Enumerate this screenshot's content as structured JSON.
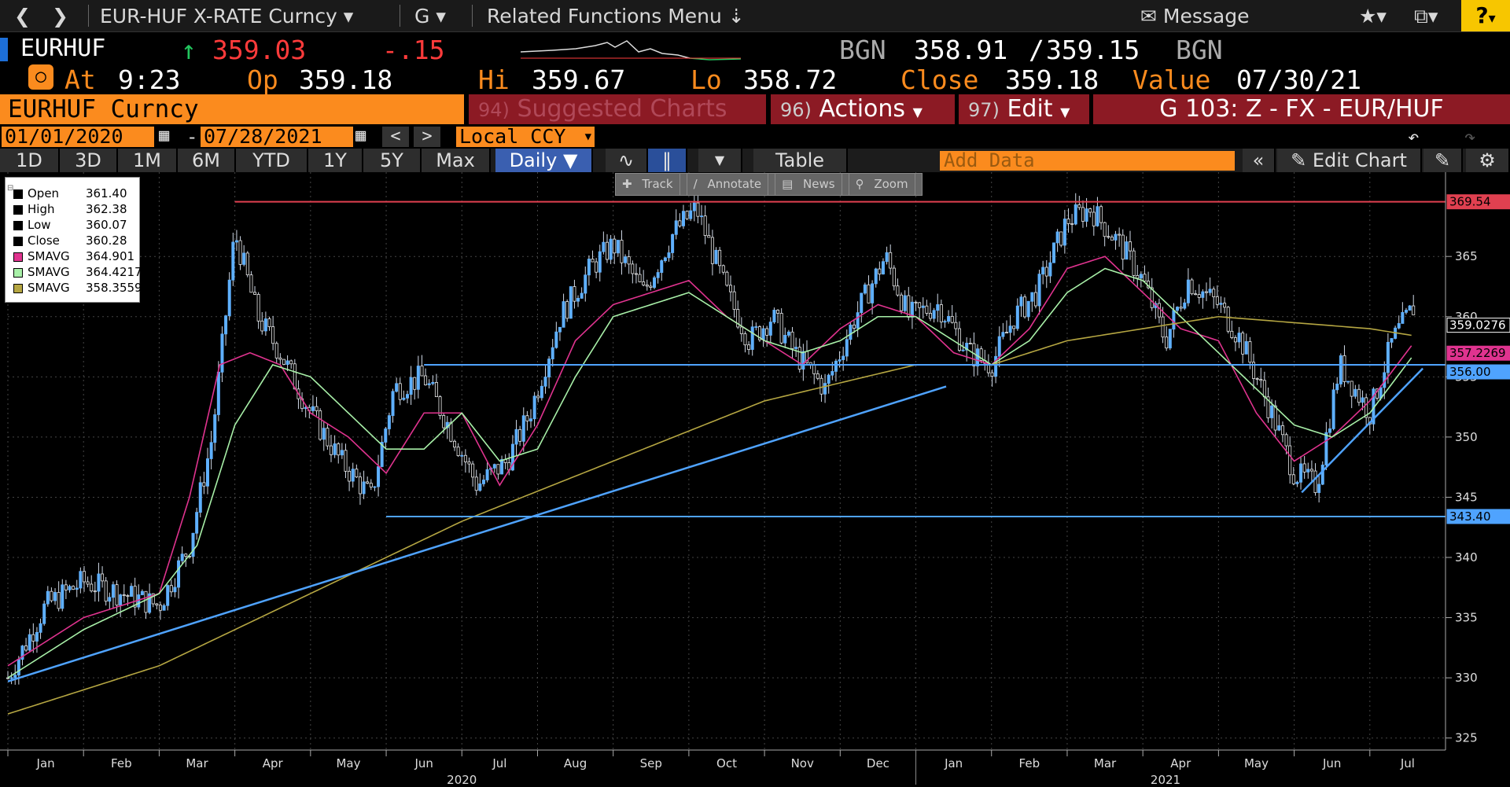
{
  "topbar": {
    "back_icon": "chevron-left",
    "forward_icon": "chevron-right",
    "security_menu": "EUR-HUF X-RATE Curncy",
    "function_menu": "G",
    "related": "Related Functions Menu",
    "message": "Message",
    "help": "?"
  },
  "quote": {
    "ticker": "EURHUF",
    "last": "359.03",
    "change": "-.15",
    "bid_source": "BGN",
    "bid": "358.91",
    "sep": "/",
    "ask": "359.15",
    "ask_source": "BGN",
    "at_label": "At",
    "time": "9:23",
    "open_label": "Op",
    "open": "359.18",
    "high_label": "Hi",
    "high": "359.67",
    "low_label": "Lo",
    "low": "358.72",
    "close_label": "Close",
    "close": "359.18",
    "value_label": "Value",
    "value_date": "07/30/21"
  },
  "toolbar": {
    "security": "EURHUF Curncy",
    "suggested_num": "94)",
    "suggested": "Suggested Charts",
    "actions_num": "96)",
    "actions": "Actions",
    "edit_num": "97)",
    "edit": "Edit",
    "page": "G 103: Z - FX - EUR/HUF"
  },
  "dates": {
    "start": "01/01/2020",
    "dash": "-",
    "end": "07/28/2021",
    "currency": "Local CCY"
  },
  "periods": [
    "1D",
    "3D",
    "1M",
    "6M",
    "YTD",
    "1Y",
    "5Y",
    "Max"
  ],
  "frequency": "Daily",
  "table_label": "Table",
  "add_data_placeholder": "Add Data",
  "edit_chart": "Edit Chart",
  "tools": [
    "Track",
    "Annotate",
    "News",
    "Zoom"
  ],
  "legend": [
    {
      "name": "Open",
      "value": "361.40",
      "color": "#000000"
    },
    {
      "name": "High",
      "value": "362.38",
      "color": "#000000"
    },
    {
      "name": "Low",
      "value": "360.07",
      "color": "#000000"
    },
    {
      "name": "Close",
      "value": "360.28",
      "color": "#000000"
    },
    {
      "name": "SMAVG",
      "value": "364.901",
      "color": "#e0338f"
    },
    {
      "name": "SMAVG",
      "value": "364.4217",
      "color": "#a8f0a8"
    },
    {
      "name": "SMAVG",
      "value": "358.3559",
      "color": "#b5a642"
    }
  ],
  "chart_data": {
    "type": "line",
    "ylim": [
      324,
      372
    ],
    "yticks": [
      325,
      330,
      335,
      340,
      345,
      350,
      355,
      360,
      365
    ],
    "month_labels": [
      "Jan",
      "Feb",
      "Mar",
      "Apr",
      "May",
      "Jun",
      "Jul",
      "Aug",
      "Sep",
      "Oct",
      "Nov",
      "Dec",
      "Jan",
      "Feb",
      "Mar",
      "Apr",
      "May",
      "Jun",
      "Jul"
    ],
    "year_labels": [
      "2020",
      "2021"
    ],
    "series": [
      {
        "name": "EURHUF",
        "color": "#4fa3ff",
        "x": [
          0,
          0.5,
          1,
          1.5,
          2,
          2.4,
          2.7,
          3,
          3.3,
          3.6,
          4,
          4.4,
          4.8,
          5.1,
          5.5,
          5.9,
          6.2,
          6.6,
          6.9,
          7.3,
          7.7,
          8,
          8.4,
          8.8,
          9.1,
          9.5,
          9.8,
          10.1,
          10.4,
          10.8,
          11.2,
          11.6,
          11.9,
          12.3,
          12.7,
          13,
          13.3,
          13.6,
          14,
          14.3,
          14.7,
          15,
          15.3,
          15.6,
          16,
          16.3,
          16.7,
          17,
          17.3,
          17.6,
          18,
          18.3,
          18.6
        ],
        "values": [
          330,
          336,
          338,
          337,
          336,
          341,
          350,
          367,
          360,
          357,
          352,
          348,
          345,
          354,
          355,
          350,
          346,
          348,
          352,
          360,
          364,
          366,
          362,
          367,
          369,
          362,
          358,
          360,
          357,
          354,
          360,
          365,
          360,
          361,
          357,
          356,
          360,
          362,
          368,
          369,
          366,
          363,
          358,
          363,
          361,
          358,
          352,
          347,
          346,
          356,
          352,
          358,
          361
        ]
      },
      {
        "name": "SMAVG",
        "color": "#e0338f",
        "x": [
          0,
          1,
          2,
          2.4,
          2.8,
          3.2,
          3.6,
          4,
          4.5,
          5,
          5.5,
          6,
          6.5,
          7,
          7.5,
          8,
          8.5,
          9,
          9.5,
          10,
          10.5,
          11,
          11.5,
          12,
          12.5,
          13,
          13.5,
          14,
          14.5,
          15,
          15.5,
          16,
          16.5,
          17,
          17.5,
          18,
          18.6
        ],
        "values": [
          331,
          335,
          337,
          345,
          356,
          357,
          356,
          352,
          350,
          347,
          352,
          352,
          346,
          351,
          358,
          361,
          362,
          363,
          360,
          358,
          356,
          359,
          361,
          360,
          357,
          356,
          359,
          364,
          365,
          362,
          359,
          358,
          352,
          348,
          350,
          353,
          358
        ]
      },
      {
        "name": "SMAVG",
        "color": "#a8f0a8",
        "x": [
          0,
          1,
          2,
          2.5,
          3,
          3.5,
          4,
          4.5,
          5,
          5.5,
          6,
          6.5,
          7,
          7.5,
          8,
          8.5,
          9,
          9.5,
          10,
          10.5,
          11,
          11.5,
          12,
          12.5,
          13,
          13.5,
          14,
          14.5,
          15,
          15.5,
          16,
          16.5,
          17,
          17.5,
          18,
          18.6
        ],
        "values": [
          330,
          334,
          337,
          341,
          351,
          356,
          355,
          352,
          349,
          349,
          352,
          348,
          349,
          355,
          360,
          361,
          362,
          360,
          358,
          357,
          358,
          360,
          360,
          358,
          356,
          358,
          362,
          364,
          363,
          360,
          357,
          354,
          351,
          350,
          352,
          357
        ]
      },
      {
        "name": "SMAVG",
        "color": "#b5a642",
        "x": [
          0,
          2,
          4,
          6,
          8,
          10,
          12,
          13,
          14,
          15,
          16,
          17,
          18,
          18.6
        ],
        "values": [
          327,
          331,
          337,
          343,
          348,
          353,
          356,
          356,
          358,
          359,
          360,
          359.5,
          359,
          358.4
        ]
      }
    ],
    "price_tags": [
      {
        "value": "369.54",
        "color": "#e04050",
        "text": "#000"
      },
      {
        "value": "359.0276",
        "color": "#000",
        "text": "#fff"
      },
      {
        "value": "357.2269",
        "color": "#e0338f",
        "text": "#000"
      },
      {
        "value": "356.00",
        "color": "#4fa3ff",
        "text": "#000"
      },
      {
        "value": "343.40",
        "color": "#4fa3ff",
        "text": "#000"
      }
    ]
  }
}
